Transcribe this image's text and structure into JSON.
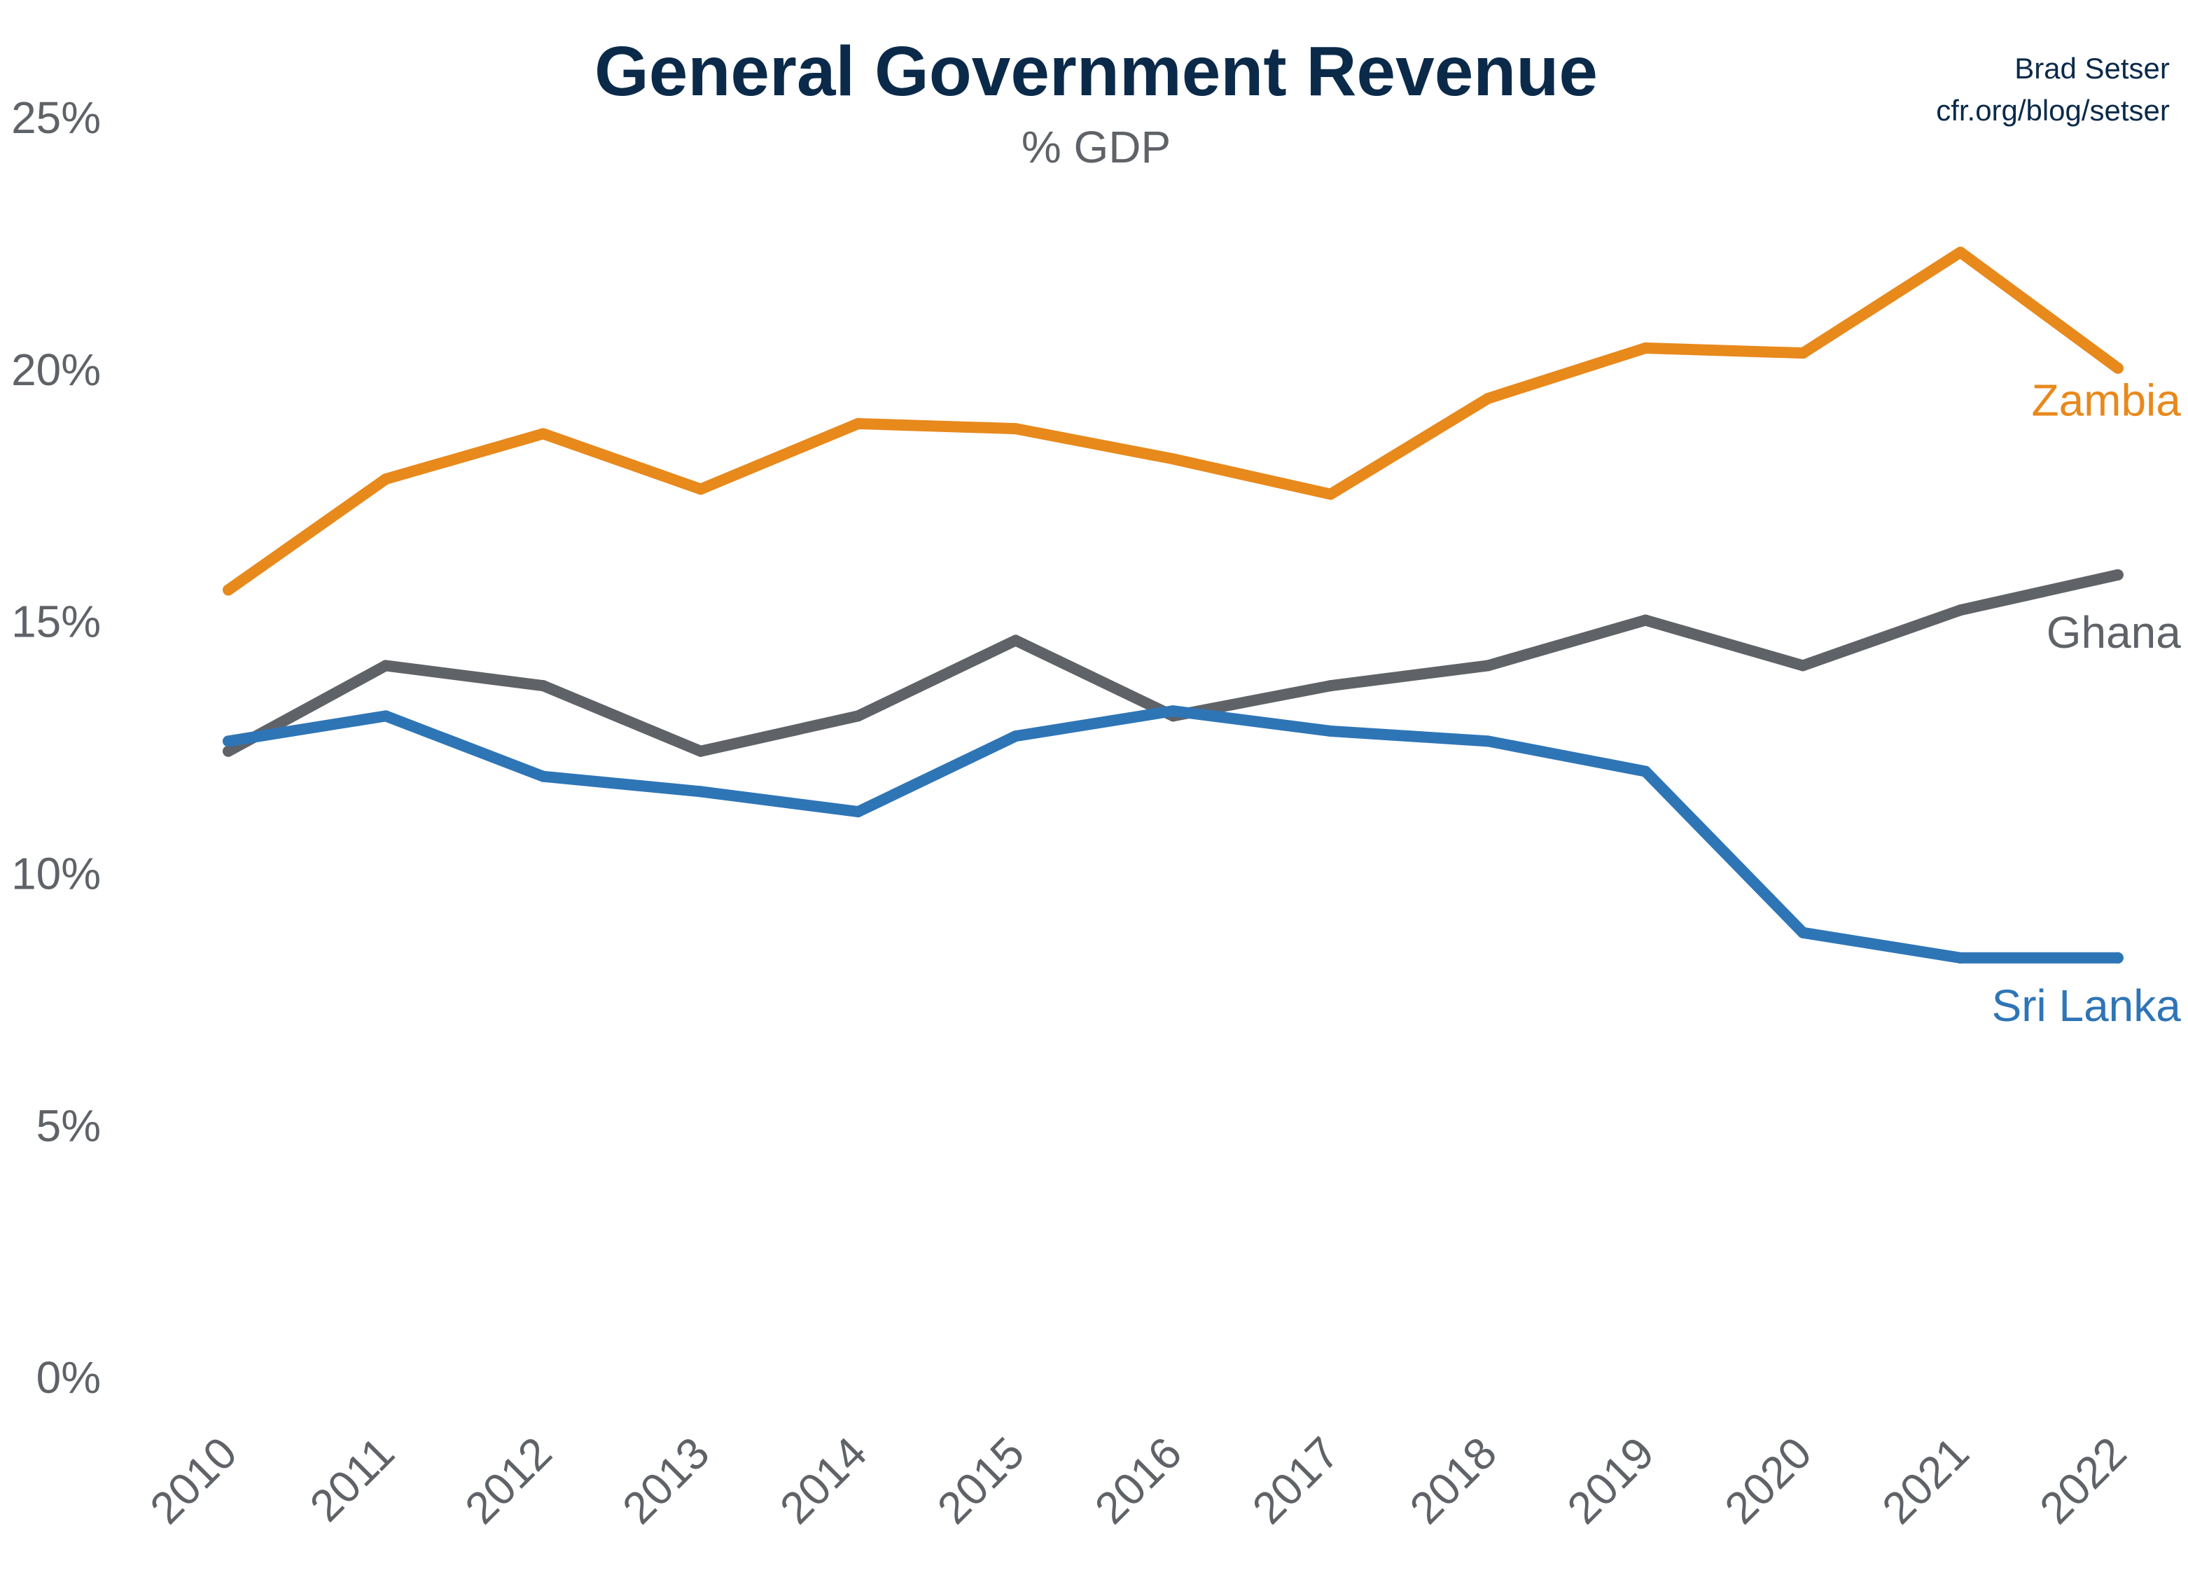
{
  "chart_data": {
    "type": "line",
    "title": "General Government Revenue",
    "subtitle": "% GDP",
    "credit": [
      "Brad Setser",
      "cfr.org/blog/setser"
    ],
    "xlabel": "",
    "ylabel": "",
    "ylim": [
      0,
      25
    ],
    "yticks": [
      "0%",
      "5%",
      "10%",
      "15%",
      "20%",
      "25%"
    ],
    "ytick_values": [
      0,
      5,
      10,
      15,
      20,
      25
    ],
    "grid": false,
    "legend": "inline labels at line ends",
    "x": [
      "2010",
      "2011",
      "2012",
      "2013",
      "2014",
      "2015",
      "2016",
      "2017",
      "2018",
      "2019",
      "2020",
      "2021",
      "2022"
    ],
    "series": [
      {
        "name": "Zambia",
        "color": "#E8891C",
        "values": [
          15.6,
          17.8,
          18.7,
          17.6,
          18.9,
          18.8,
          18.2,
          17.5,
          19.4,
          20.4,
          20.3,
          22.3,
          20.0
        ]
      },
      {
        "name": "Ghana",
        "color": "#5F6368",
        "values": [
          12.4,
          14.1,
          13.7,
          12.4,
          13.1,
          14.6,
          13.1,
          13.7,
          14.1,
          15.0,
          14.1,
          15.2,
          15.9
        ]
      },
      {
        "name": "Sri Lanka",
        "color": "#2E75B6",
        "values": [
          12.6,
          13.1,
          11.9,
          11.6,
          11.2,
          12.7,
          13.2,
          12.8,
          12.6,
          12.0,
          8.8,
          8.3,
          8.3
        ]
      }
    ]
  }
}
